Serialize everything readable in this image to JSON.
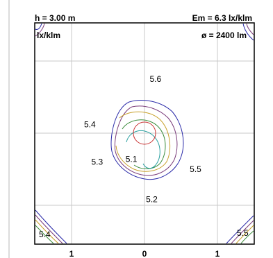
{
  "header": {
    "height_label": "h = 3.00 m",
    "em_label": "Em = 6.3 lx/klm"
  },
  "chart_data": {
    "type": "contour",
    "unit_label": "lx/klm",
    "flux_label": "ø = 2400 lm",
    "grid": true,
    "x_ticks": [
      "1",
      "0",
      "1"
    ],
    "colors": {
      "frame": "#000000",
      "grid": "#c8c8c8",
      "background": "#ffffff",
      "levels": [
        "#2a2aa8",
        "#7a3c7a",
        "#c8a02a",
        "#3c8c3c",
        "#2aa0a0",
        "#c83232"
      ]
    },
    "contour_labels": [
      {
        "text": "5.6",
        "x": 0.15,
        "y": 0.75
      },
      {
        "text": "5.4",
        "x": -0.75,
        "y": 0.12
      },
      {
        "text": "5.3",
        "x": -0.65,
        "y": -0.4
      },
      {
        "text": "5.1",
        "x": -0.18,
        "y": -0.36
      },
      {
        "text": "5.5",
        "x": 0.7,
        "y": -0.5
      },
      {
        "text": "5.2",
        "x": 0.1,
        "y": -0.92
      }
    ],
    "corner_labels": [
      {
        "text": "5.4",
        "corner": "bottom-left"
      },
      {
        "text": "5.5",
        "corner": "bottom-right"
      }
    ]
  }
}
